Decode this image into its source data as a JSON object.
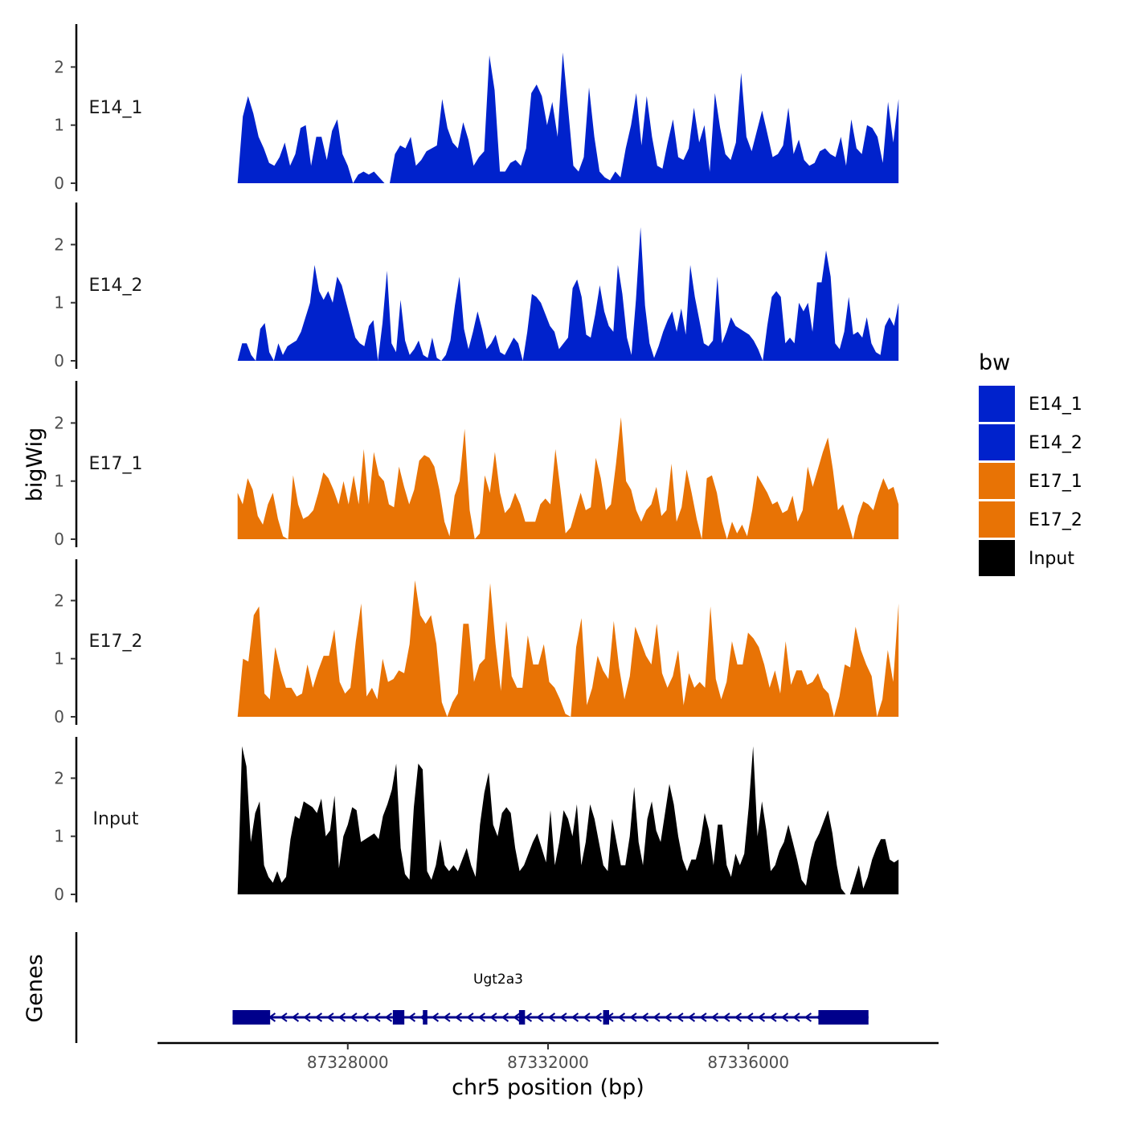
{
  "chart_data": {
    "type": "area",
    "title": "",
    "xlabel": "chr5 position (bp)",
    "ylabel": "bigWig",
    "genes_axis_label": "Genes",
    "xlim": [
      87324200,
      87339800
    ],
    "data_xrange": [
      87325800,
      87339000
    ],
    "x_ticks": [
      87328000,
      87332000,
      87336000
    ],
    "x_tick_labels": [
      "87328000",
      "87332000",
      "87336000"
    ],
    "ylim": [
      0,
      2.7
    ],
    "y_ticks": [
      0,
      1,
      2
    ],
    "y_tick_labels": [
      "0",
      "1",
      "2"
    ],
    "legend_title": "bw",
    "legend_position": "right",
    "colors": {
      "E14": "#0022cc",
      "E17": "#e87305",
      "Input": "#000000",
      "gene": "#00008b"
    },
    "series": [
      {
        "name": "E14_1",
        "color": "#0022cc",
        "values": [
          0,
          1.15,
          1.5,
          1.2,
          0.8,
          0.6,
          0.35,
          0.3,
          0.45,
          0.7,
          0.3,
          0.5,
          0.95,
          1.0,
          0.3,
          0.8,
          0.8,
          0.4,
          0.9,
          1.1,
          0.5,
          0.3,
          0,
          0.15,
          0.2,
          0.15,
          0.2,
          0.1,
          0,
          0,
          0.5,
          0.65,
          0.6,
          0.8,
          0.3,
          0.4,
          0.55,
          0.6,
          0.65,
          1.45,
          0.95,
          0.7,
          0.6,
          1.05,
          0.75,
          0.3,
          0.45,
          0.55,
          2.2,
          1.6,
          0.2,
          0.2,
          0.35,
          0.4,
          0.3,
          0.6,
          1.55,
          1.7,
          1.5,
          1.0,
          1.4,
          0.8,
          2.25,
          1.3,
          0.3,
          0.2,
          0.45,
          1.65,
          0.8,
          0.2,
          0.1,
          0.05,
          0.2,
          0.1,
          0.6,
          1.0,
          1.55,
          0.65,
          1.5,
          0.8,
          0.3,
          0.25,
          0.7,
          1.1,
          0.45,
          0.4,
          0.6,
          1.3,
          0.7,
          1.0,
          0.2,
          1.55,
          0.95,
          0.5,
          0.4,
          0.7,
          1.9,
          0.8,
          0.55,
          0.9,
          1.25,
          0.85,
          0.45,
          0.5,
          0.65,
          1.3,
          0.5,
          0.75,
          0.4,
          0.3,
          0.35,
          0.55,
          0.6,
          0.5,
          0.45,
          0.8,
          0.3,
          1.1,
          0.6,
          0.5,
          1.0,
          0.95,
          0.8,
          0.35,
          1.4,
          0.7,
          1.45
        ]
      },
      {
        "name": "E14_2",
        "color": "#0022cc",
        "values": [
          0,
          0.3,
          0.3,
          0.1,
          0,
          0.55,
          0.65,
          0.15,
          0,
          0.3,
          0.1,
          0.25,
          0.3,
          0.35,
          0.5,
          0.75,
          1.0,
          1.65,
          1.2,
          1.05,
          1.2,
          1.0,
          1.45,
          1.3,
          1.0,
          0.7,
          0.4,
          0.3,
          0.25,
          0.6,
          0.7,
          0,
          0.65,
          1.55,
          0.3,
          0.15,
          1.05,
          0.35,
          0.1,
          0.2,
          0.35,
          0.1,
          0.05,
          0.4,
          0.05,
          0,
          0.1,
          0.35,
          0.95,
          1.45,
          0.55,
          0.2,
          0.5,
          0.85,
          0.55,
          0.2,
          0.3,
          0.45,
          0.15,
          0.1,
          0.25,
          0.4,
          0.3,
          0,
          0.5,
          1.15,
          1.1,
          1.0,
          0.8,
          0.6,
          0.5,
          0.2,
          0.3,
          0.4,
          1.25,
          1.4,
          1.1,
          0.45,
          0.4,
          0.8,
          1.3,
          0.85,
          0.6,
          0.5,
          1.65,
          1.15,
          0.4,
          0.1,
          1.05,
          2.3,
          0.95,
          0.3,
          0.05,
          0.25,
          0.5,
          0.7,
          0.85,
          0.5,
          0.9,
          0.45,
          1.65,
          1.1,
          0.7,
          0.3,
          0.25,
          0.35,
          1.45,
          0.3,
          0.5,
          0.75,
          0.6,
          0.55,
          0.5,
          0.45,
          0.35,
          0.2,
          0,
          0.6,
          1.1,
          1.2,
          1.1,
          0.3,
          0.4,
          0.3,
          1.0,
          0.85,
          1.0,
          0.5,
          1.35,
          1.35,
          1.9,
          1.45,
          0.3,
          0.2,
          0.5,
          1.1,
          0.45,
          0.5,
          0.4,
          0.75,
          0.3,
          0.15,
          0.1,
          0.6,
          0.75,
          0.6,
          1.0
        ]
      },
      {
        "name": "E17_1",
        "color": "#e87305",
        "values": [
          0.8,
          0.6,
          1.05,
          0.85,
          0.4,
          0.25,
          0.6,
          0.8,
          0.35,
          0.05,
          0,
          1.1,
          0.6,
          0.35,
          0.4,
          0.5,
          0.8,
          1.15,
          1.05,
          0.85,
          0.6,
          1.0,
          0.6,
          1.1,
          0.6,
          1.55,
          0.6,
          1.5,
          1.1,
          1.0,
          0.6,
          0.55,
          1.25,
          0.9,
          0.6,
          0.85,
          1.35,
          1.45,
          1.4,
          1.25,
          0.85,
          0.3,
          0.05,
          0.75,
          1.0,
          1.9,
          0.5,
          0,
          0.1,
          1.1,
          0.8,
          1.5,
          0.8,
          0.45,
          0.55,
          0.8,
          0.6,
          0.3,
          0.3,
          0.3,
          0.6,
          0.7,
          0.6,
          1.55,
          0.85,
          0.1,
          0.2,
          0.5,
          0.8,
          0.5,
          0.55,
          1.4,
          1.05,
          0.5,
          0.6,
          1.3,
          2.1,
          1.0,
          0.85,
          0.5,
          0.3,
          0.5,
          0.6,
          0.9,
          0.4,
          0.5,
          1.3,
          0.3,
          0.55,
          1.2,
          0.8,
          0.35,
          0,
          1.05,
          1.1,
          0.8,
          0.3,
          0,
          0.3,
          0.1,
          0.25,
          0.05,
          0.5,
          1.1,
          0.95,
          0.8,
          0.6,
          0.65,
          0.45,
          0.5,
          0.75,
          0.3,
          0.5,
          1.25,
          0.9,
          1.2,
          1.5,
          1.75,
          1.2,
          0.5,
          0.6,
          0.3,
          0,
          0.4,
          0.65,
          0.6,
          0.5,
          0.8,
          1.05,
          0.85,
          0.9,
          0.6
        ]
      },
      {
        "name": "E17_2",
        "color": "#e87305",
        "values": [
          0,
          1.0,
          0.95,
          1.75,
          1.9,
          0.4,
          0.3,
          1.2,
          0.8,
          0.5,
          0.5,
          0.35,
          0.4,
          0.9,
          0.5,
          0.8,
          1.05,
          1.05,
          1.5,
          0.6,
          0.4,
          0.5,
          1.3,
          1.95,
          0.35,
          0.5,
          0.3,
          1.0,
          0.6,
          0.65,
          0.8,
          0.75,
          1.25,
          2.35,
          1.75,
          1.6,
          1.75,
          1.25,
          0.25,
          0,
          0.25,
          0.4,
          1.6,
          1.6,
          0.6,
          0.9,
          1.0,
          2.3,
          1.25,
          0.45,
          1.65,
          0.7,
          0.5,
          0.5,
          1.4,
          0.9,
          0.9,
          1.25,
          0.6,
          0.5,
          0.3,
          0.05,
          0,
          1.2,
          1.7,
          0.2,
          0.5,
          1.05,
          0.8,
          0.65,
          1.65,
          0.85,
          0.3,
          0.7,
          1.55,
          1.3,
          1.05,
          0.9,
          1.6,
          0.75,
          0.5,
          0.7,
          1.15,
          0.2,
          0.75,
          0.5,
          0.6,
          0.5,
          1.9,
          0.65,
          0.3,
          0.6,
          1.3,
          0.9,
          0.9,
          1.45,
          1.35,
          1.2,
          0.9,
          0.5,
          0.8,
          0.4,
          1.3,
          0.55,
          0.8,
          0.8,
          0.55,
          0.6,
          0.75,
          0.5,
          0.4,
          0,
          0.35,
          0.9,
          0.85,
          1.55,
          1.15,
          0.9,
          0.7,
          0,
          0.3,
          1.15,
          0.6,
          1.95
        ]
      },
      {
        "name": "Input",
        "color": "#000000",
        "values": [
          0,
          2.55,
          2.2,
          0.9,
          1.4,
          1.6,
          0.5,
          0.3,
          0.2,
          0.4,
          0.2,
          0.3,
          0.95,
          1.35,
          1.3,
          1.6,
          1.55,
          1.5,
          1.4,
          1.65,
          1.0,
          1.1,
          1.7,
          0.45,
          1.0,
          1.2,
          1.5,
          1.45,
          0.9,
          0.95,
          1.0,
          1.05,
          0.95,
          1.35,
          1.55,
          1.8,
          2.25,
          0.8,
          0.35,
          0.25,
          1.5,
          2.25,
          2.15,
          0.4,
          0.25,
          0.5,
          0.95,
          0.5,
          0.4,
          0.5,
          0.4,
          0.6,
          0.8,
          0.5,
          0.3,
          1.2,
          1.75,
          2.1,
          1.2,
          1.0,
          1.4,
          1.5,
          1.4,
          0.8,
          0.4,
          0.5,
          0.7,
          0.9,
          1.05,
          0.8,
          0.55,
          1.45,
          0.5,
          0.9,
          1.45,
          1.3,
          1.0,
          1.55,
          0.5,
          0.9,
          1.55,
          1.3,
          0.9,
          0.5,
          0.4,
          1.3,
          0.9,
          0.5,
          0.5,
          1.0,
          1.85,
          0.9,
          0.5,
          1.3,
          1.6,
          1.1,
          0.9,
          1.4,
          1.9,
          1.55,
          1.0,
          0.6,
          0.4,
          0.6,
          0.6,
          0.9,
          1.4,
          1.1,
          0.5,
          1.2,
          1.2,
          0.5,
          0.3,
          0.7,
          0.5,
          0.7,
          1.5,
          2.55,
          1.0,
          1.6,
          1.1,
          0.4,
          0.5,
          0.75,
          0.9,
          1.2,
          0.9,
          0.6,
          0.25,
          0.15,
          0.6,
          0.9,
          1.05,
          1.25,
          1.45,
          1.05,
          0.5,
          0.1,
          0,
          0,
          0.25,
          0.5,
          0.1,
          0.3,
          0.6,
          0.8,
          0.95,
          0.95,
          0.6,
          0.55,
          0.6
        ]
      }
    ],
    "gene": {
      "name": "Ugt2a3",
      "strand": "-",
      "start": 87325700,
      "end": 87338400,
      "exons": [
        [
          87325700,
          87326450
        ],
        [
          87328900,
          87329130
        ],
        [
          87329500,
          87329590
        ],
        [
          87331420,
          87331540
        ],
        [
          87333100,
          87333220
        ],
        [
          87337400,
          87338400
        ]
      ]
    }
  }
}
